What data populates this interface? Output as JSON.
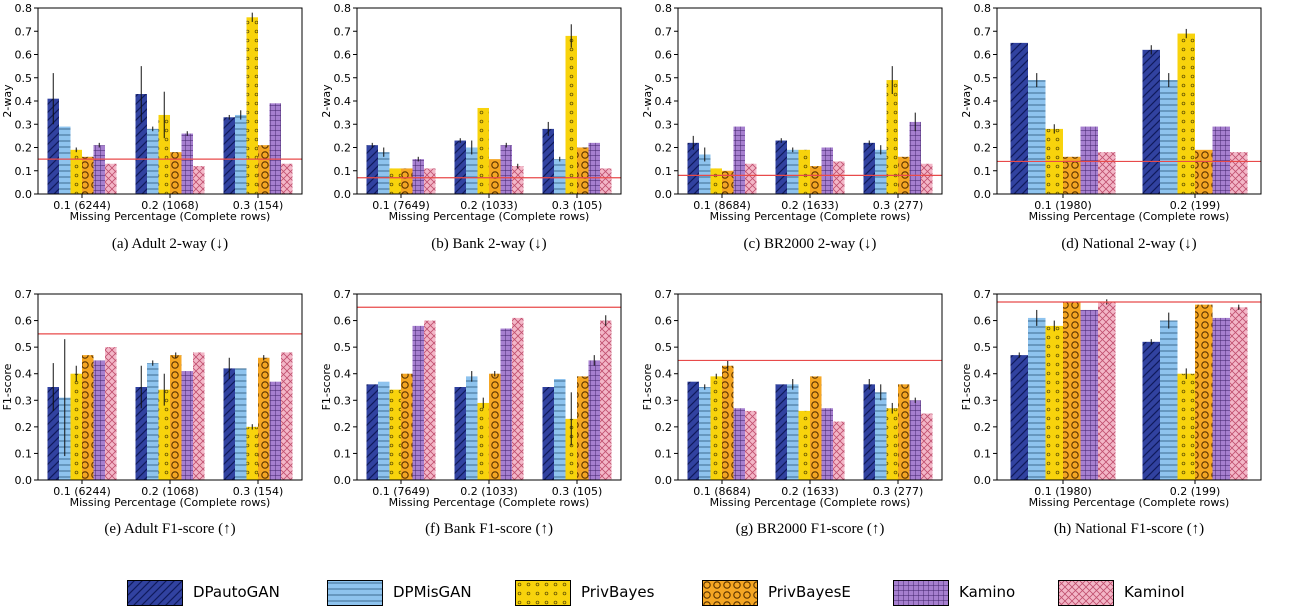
{
  "series_styles": [
    {
      "name": "DPautoGAN",
      "fill": "#3142a0",
      "pattern": "diag",
      "stroke": "#0f1a5c"
    },
    {
      "name": "DPMisGAN",
      "fill": "#8ec3ee",
      "pattern": "hline",
      "stroke": "#2b5578"
    },
    {
      "name": "PrivBayes",
      "fill": "#f8d30c",
      "pattern": "smalldots",
      "stroke": "#6b5800"
    },
    {
      "name": "PrivBayesE",
      "fill": "#f5a623",
      "pattern": "circles",
      "stroke": "#5a3300"
    },
    {
      "name": "Kamino",
      "fill": "#a67fcf",
      "pattern": "grid",
      "stroke": "#3f2168"
    },
    {
      "name": "KaminoI",
      "fill": "#f3b6c7",
      "pattern": "cross",
      "stroke": "#c0506f"
    }
  ],
  "legend": [
    "DPautoGAN",
    "DPMisGAN",
    "PrivBayes",
    "PrivBayesE",
    "Kamino",
    "KaminoI"
  ],
  "chart_data": [
    {
      "type": "bar",
      "caption": "(a)  Adult 2-way (↓)",
      "ylabel": "2-way",
      "xlabel": "Missing Percentage (Complete rows)",
      "categories": [
        "0.1 (6244)",
        "0.2 (1068)",
        "0.3 (154)"
      ],
      "ylim": [
        0,
        0.8
      ],
      "yticks": [
        "0.0",
        "0.1",
        "0.2",
        "0.3",
        "0.4",
        "0.5",
        "0.6",
        "0.7",
        "0.8"
      ],
      "reference_line": 0.15,
      "series": [
        {
          "name": "DPautoGAN",
          "values": [
            0.41,
            0.43,
            0.33
          ],
          "err": [
            0.11,
            0.12,
            0.01
          ]
        },
        {
          "name": "DPMisGAN",
          "values": [
            0.29,
            0.28,
            0.34
          ],
          "err": [
            0,
            0.01,
            0.02
          ]
        },
        {
          "name": "PrivBayes",
          "values": [
            0.19,
            0.34,
            0.76
          ],
          "err": [
            0.01,
            0.1,
            0.02
          ]
        },
        {
          "name": "PrivBayesE",
          "values": [
            0.16,
            0.18,
            0.21
          ],
          "err": [
            0,
            0,
            0
          ]
        },
        {
          "name": "Kamino",
          "values": [
            0.21,
            0.26,
            0.39
          ],
          "err": [
            0.01,
            0.01,
            0
          ]
        },
        {
          "name": "KaminoI",
          "values": [
            0.13,
            0.12,
            0.13
          ],
          "err": [
            0,
            0,
            0
          ]
        }
      ]
    },
    {
      "type": "bar",
      "caption": "(b)  Bank 2-way (↓)",
      "ylabel": "2-way",
      "xlabel": "Missing Percentage (Complete rows)",
      "categories": [
        "0.1 (7649)",
        "0.2 (1033)",
        "0.3 (105)"
      ],
      "ylim": [
        0,
        0.8
      ],
      "yticks": [
        "0.0",
        "0.1",
        "0.2",
        "0.3",
        "0.4",
        "0.5",
        "0.6",
        "0.7",
        "0.8"
      ],
      "reference_line": 0.07,
      "series": [
        {
          "name": "DPautoGAN",
          "values": [
            0.21,
            0.23,
            0.28
          ],
          "err": [
            0.01,
            0.01,
            0.03
          ]
        },
        {
          "name": "DPMisGAN",
          "values": [
            0.18,
            0.2,
            0.15
          ],
          "err": [
            0.02,
            0.03,
            0.01
          ]
        },
        {
          "name": "PrivBayes",
          "values": [
            0.11,
            0.37,
            0.68
          ],
          "err": [
            0,
            0,
            0.05
          ]
        },
        {
          "name": "PrivBayesE",
          "values": [
            0.11,
            0.15,
            0.2
          ],
          "err": [
            0,
            0,
            0
          ]
        },
        {
          "name": "Kamino",
          "values": [
            0.15,
            0.21,
            0.22
          ],
          "err": [
            0.01,
            0.01,
            0
          ]
        },
        {
          "name": "KaminoI",
          "values": [
            0.11,
            0.12,
            0.11
          ],
          "err": [
            0,
            0.01,
            0
          ]
        }
      ]
    },
    {
      "type": "bar",
      "caption": "(c)  BR2000 2-way (↓)",
      "ylabel": "2-way",
      "xlabel": "Missing Percentage (Complete rows)",
      "categories": [
        "0.1 (8684)",
        "0.2 (1633)",
        "0.3 (277)"
      ],
      "ylim": [
        0,
        0.8
      ],
      "yticks": [
        "0.0",
        "0.1",
        "0.2",
        "0.3",
        "0.4",
        "0.5",
        "0.6",
        "0.7",
        "0.8"
      ],
      "reference_line": 0.08,
      "series": [
        {
          "name": "DPautoGAN",
          "values": [
            0.22,
            0.23,
            0.22
          ],
          "err": [
            0.03,
            0.01,
            0.01
          ]
        },
        {
          "name": "DPMisGAN",
          "values": [
            0.17,
            0.19,
            0.19
          ],
          "err": [
            0.03,
            0.01,
            0.02
          ]
        },
        {
          "name": "PrivBayes",
          "values": [
            0.11,
            0.19,
            0.49
          ],
          "err": [
            0,
            0,
            0.06
          ]
        },
        {
          "name": "PrivBayesE",
          "values": [
            0.1,
            0.12,
            0.16
          ],
          "err": [
            0,
            0,
            0
          ]
        },
        {
          "name": "Kamino",
          "values": [
            0.29,
            0.2,
            0.31
          ],
          "err": [
            0,
            0,
            0.04
          ]
        },
        {
          "name": "KaminoI",
          "values": [
            0.13,
            0.14,
            0.13
          ],
          "err": [
            0,
            0,
            0
          ]
        }
      ]
    },
    {
      "type": "bar",
      "caption": "(d)  National 2-way (↓)",
      "ylabel": "2-way",
      "xlabel": "Missing Percentage (Complete rows)",
      "categories": [
        "0.1 (1980)",
        "0.2 (199)"
      ],
      "ylim": [
        0,
        0.8
      ],
      "yticks": [
        "0.0",
        "0.1",
        "0.2",
        "0.3",
        "0.4",
        "0.5",
        "0.6",
        "0.7",
        "0.8"
      ],
      "reference_line": 0.14,
      "series": [
        {
          "name": "DPautoGAN",
          "values": [
            0.65,
            0.62
          ],
          "err": [
            0,
            0.02
          ]
        },
        {
          "name": "DPMisGAN",
          "values": [
            0.49,
            0.49
          ],
          "err": [
            0.03,
            0.03
          ]
        },
        {
          "name": "PrivBayes",
          "values": [
            0.28,
            0.69
          ],
          "err": [
            0.02,
            0.02
          ]
        },
        {
          "name": "PrivBayesE",
          "values": [
            0.16,
            0.19
          ],
          "err": [
            0,
            0
          ]
        },
        {
          "name": "Kamino",
          "values": [
            0.29,
            0.29
          ],
          "err": [
            0,
            0
          ]
        },
        {
          "name": "KaminoI",
          "values": [
            0.18,
            0.18
          ],
          "err": [
            0,
            0
          ]
        }
      ]
    },
    {
      "type": "bar",
      "caption": "(e)  Adult F1-score (↑)",
      "ylabel": "F1-score",
      "xlabel": "Missing Percentage (Complete rows)",
      "categories": [
        "0.1 (6244)",
        "0.2 (1068)",
        "0.3 (154)"
      ],
      "ylim": [
        0,
        0.7
      ],
      "yticks": [
        "0.0",
        "0.1",
        "0.2",
        "0.3",
        "0.4",
        "0.5",
        "0.6",
        "0.7"
      ],
      "reference_line": 0.55,
      "series": [
        {
          "name": "DPautoGAN",
          "values": [
            0.35,
            0.35,
            0.42
          ],
          "err": [
            0.09,
            0.08,
            0.04
          ]
        },
        {
          "name": "DPMisGAN",
          "values": [
            0.31,
            0.44,
            0.42
          ],
          "err": [
            0.22,
            0.01,
            0
          ]
        },
        {
          "name": "PrivBayes",
          "values": [
            0.4,
            0.34,
            0.2
          ],
          "err": [
            0.03,
            0.06,
            0.01
          ]
        },
        {
          "name": "PrivBayesE",
          "values": [
            0.47,
            0.47,
            0.46
          ],
          "err": [
            0,
            0.01,
            0.01
          ]
        },
        {
          "name": "Kamino",
          "values": [
            0.45,
            0.41,
            0.37
          ],
          "err": [
            0,
            0,
            0
          ]
        },
        {
          "name": "KaminoI",
          "values": [
            0.5,
            0.48,
            0.48
          ],
          "err": [
            0,
            0,
            0
          ]
        }
      ]
    },
    {
      "type": "bar",
      "caption": "(f)  Bank F1-score (↑)",
      "ylabel": "F1-score",
      "xlabel": "Missing Percentage (Complete rows)",
      "categories": [
        "0.1 (7649)",
        "0.2 (1033)",
        "0.3 (105)"
      ],
      "ylim": [
        0,
        0.7
      ],
      "yticks": [
        "0.0",
        "0.1",
        "0.2",
        "0.3",
        "0.4",
        "0.5",
        "0.6",
        "0.7"
      ],
      "reference_line": 0.65,
      "series": [
        {
          "name": "DPautoGAN",
          "values": [
            0.36,
            0.35,
            0.35
          ],
          "err": [
            0,
            0,
            0
          ]
        },
        {
          "name": "DPMisGAN",
          "values": [
            0.37,
            0.39,
            0.38
          ],
          "err": [
            0,
            0.02,
            0
          ]
        },
        {
          "name": "PrivBayes",
          "values": [
            0.34,
            0.29,
            0.23
          ],
          "err": [
            0,
            0.02,
            0.1
          ]
        },
        {
          "name": "PrivBayesE",
          "values": [
            0.4,
            0.4,
            0.39
          ],
          "err": [
            0,
            0.01,
            0
          ]
        },
        {
          "name": "Kamino",
          "values": [
            0.58,
            0.57,
            0.45
          ],
          "err": [
            0,
            0,
            0.02
          ]
        },
        {
          "name": "KaminoI",
          "values": [
            0.6,
            0.61,
            0.6
          ],
          "err": [
            0,
            0,
            0.02
          ]
        }
      ]
    },
    {
      "type": "bar",
      "caption": "(g)  BR2000 F1-score (↑)",
      "ylabel": "F1-score",
      "xlabel": "Missing Percentage (Complete rows)",
      "categories": [
        "0.1 (8684)",
        "0.2 (1633)",
        "0.3 (277)"
      ],
      "ylim": [
        0,
        0.7
      ],
      "yticks": [
        "0.0",
        "0.1",
        "0.2",
        "0.3",
        "0.4",
        "0.5",
        "0.6",
        "0.7"
      ],
      "reference_line": 0.45,
      "series": [
        {
          "name": "DPautoGAN",
          "values": [
            0.37,
            0.36,
            0.36
          ],
          "err": [
            0,
            0,
            0.02
          ]
        },
        {
          "name": "DPMisGAN",
          "values": [
            0.35,
            0.36,
            0.33
          ],
          "err": [
            0.01,
            0.02,
            0.03
          ]
        },
        {
          "name": "PrivBayes",
          "values": [
            0.39,
            0.26,
            0.27
          ],
          "err": [
            0.01,
            0,
            0.02
          ]
        },
        {
          "name": "PrivBayesE",
          "values": [
            0.43,
            0.39,
            0.36
          ],
          "err": [
            0.02,
            0,
            0
          ]
        },
        {
          "name": "Kamino",
          "values": [
            0.27,
            0.27,
            0.3
          ],
          "err": [
            0,
            0,
            0.01
          ]
        },
        {
          "name": "KaminoI",
          "values": [
            0.26,
            0.22,
            0.25
          ],
          "err": [
            0,
            0,
            0
          ]
        }
      ]
    },
    {
      "type": "bar",
      "caption": "(h)  National F1-score (↑)",
      "ylabel": "F1-score",
      "xlabel": "Missing Percentage (Complete rows)",
      "categories": [
        "0.1 (1980)",
        "0.2 (199)"
      ],
      "ylim": [
        0,
        0.7
      ],
      "yticks": [
        "0.0",
        "0.1",
        "0.2",
        "0.3",
        "0.4",
        "0.5",
        "0.6",
        "0.7"
      ],
      "reference_line": 0.67,
      "series": [
        {
          "name": "DPautoGAN",
          "values": [
            0.47,
            0.52
          ],
          "err": [
            0.01,
            0.01
          ]
        },
        {
          "name": "DPMisGAN",
          "values": [
            0.61,
            0.6
          ],
          "err": [
            0.03,
            0.03
          ]
        },
        {
          "name": "PrivBayes",
          "values": [
            0.58,
            0.4
          ],
          "err": [
            0.02,
            0.02
          ]
        },
        {
          "name": "PrivBayesE",
          "values": [
            0.67,
            0.66
          ],
          "err": [
            0,
            0
          ]
        },
        {
          "name": "Kamino",
          "values": [
            0.64,
            0.61
          ],
          "err": [
            0,
            0
          ]
        },
        {
          "name": "KaminoI",
          "values": [
            0.67,
            0.65
          ],
          "err": [
            0.01,
            0.01
          ]
        }
      ]
    }
  ]
}
